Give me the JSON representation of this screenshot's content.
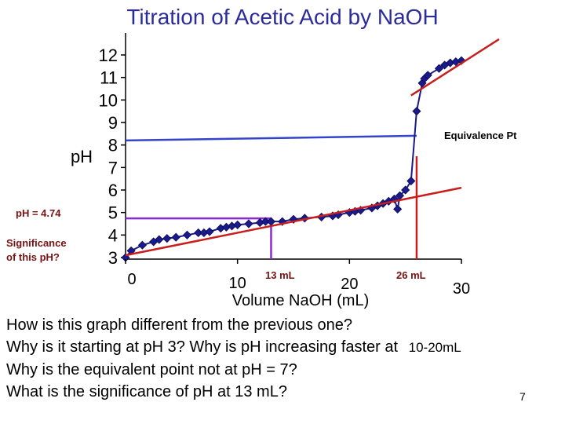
{
  "slide": {
    "page_number": "7",
    "questions": [
      "How is this graph different from the previous one?",
      "Why is it starting at pH 3?  Why is pH increasing faster at",
      "Why is the equivalent point not at pH = 7?",
      "What is the significance of pH at 13 mL?"
    ],
    "question_suffix": "10-20mL"
  },
  "colors": {
    "marker": "#1a1a8c",
    "curve": "#1a1a8c",
    "tangent": "#c81e1e",
    "equivalence_line": "#3344cc",
    "half_equivalence_line": "#8a2bd6",
    "annotation_text": "#7a1010"
  },
  "chart_data": {
    "type": "scatter",
    "title": "Titration of Acetic Acid by NaOH",
    "xlabel": "Volume NaOH (mL)",
    "ylabel": "pH",
    "xlim": [
      0,
      30
    ],
    "ylim": [
      3,
      12
    ],
    "x_ticks": [
      "0",
      "10",
      "20",
      "30"
    ],
    "y_ticks": [
      "3",
      "4",
      "5",
      "6",
      "7",
      "8",
      "9",
      "10",
      "11",
      "12"
    ],
    "grid": false,
    "legend": "none",
    "series": [
      {
        "points": [
          [
            0.0,
            3.0
          ],
          [
            0.5,
            3.3
          ],
          [
            1.5,
            3.55
          ],
          [
            2.5,
            3.7
          ],
          [
            3.0,
            3.8
          ],
          [
            3.7,
            3.85
          ],
          [
            4.5,
            3.9
          ],
          [
            5.5,
            4.0
          ],
          [
            6.5,
            4.1
          ],
          [
            7.0,
            4.1
          ],
          [
            7.5,
            4.15
          ],
          [
            8.5,
            4.3
          ],
          [
            9.0,
            4.35
          ],
          [
            9.5,
            4.4
          ],
          [
            10.0,
            4.45
          ],
          [
            11.0,
            4.5
          ],
          [
            12.0,
            4.55
          ],
          [
            12.5,
            4.6
          ],
          [
            13.0,
            4.6
          ],
          [
            14.0,
            4.6
          ],
          [
            15.0,
            4.7
          ],
          [
            16.0,
            4.75
          ],
          [
            17.5,
            4.8
          ],
          [
            18.5,
            4.85
          ],
          [
            19.0,
            4.9
          ],
          [
            20.0,
            5.0
          ],
          [
            20.5,
            5.05
          ],
          [
            21.0,
            5.1
          ],
          [
            22.0,
            5.2
          ],
          [
            22.5,
            5.3
          ],
          [
            23.0,
            5.4
          ],
          [
            23.5,
            5.5
          ],
          [
            24.0,
            5.6
          ],
          [
            24.5,
            5.75
          ],
          [
            25.0,
            6.0
          ],
          [
            25.5,
            6.4
          ],
          [
            24.3,
            5.15
          ],
          [
            26.0,
            9.5
          ],
          [
            26.5,
            10.75
          ],
          [
            26.7,
            10.95
          ],
          [
            27.0,
            11.1
          ],
          [
            28.0,
            11.4
          ],
          [
            28.5,
            11.55
          ],
          [
            29.0,
            11.65
          ],
          [
            29.5,
            11.7
          ],
          [
            30.0,
            11.75
          ]
        ]
      }
    ],
    "reference_lines": [
      {
        "label": "Equivalence Pt",
        "x": 26,
        "y": 8.2
      },
      {
        "label": "13 mL",
        "x": 13,
        "y": 4.74
      }
    ],
    "tangents": [
      {
        "x1": 0.0,
        "y1": 3.1,
        "x2": 30.0,
        "y2": 6.1
      },
      {
        "x1": 25.5,
        "y1": 10.2,
        "x2": 34.0,
        "y2": 12.7
      }
    ],
    "annotations": [
      {
        "text": "Equivalence Pt"
      },
      {
        "text": "13 mL"
      },
      {
        "text": "26 mL"
      },
      {
        "text": "pH = 4.74"
      },
      {
        "text": "Significance of this pH?"
      }
    ]
  }
}
